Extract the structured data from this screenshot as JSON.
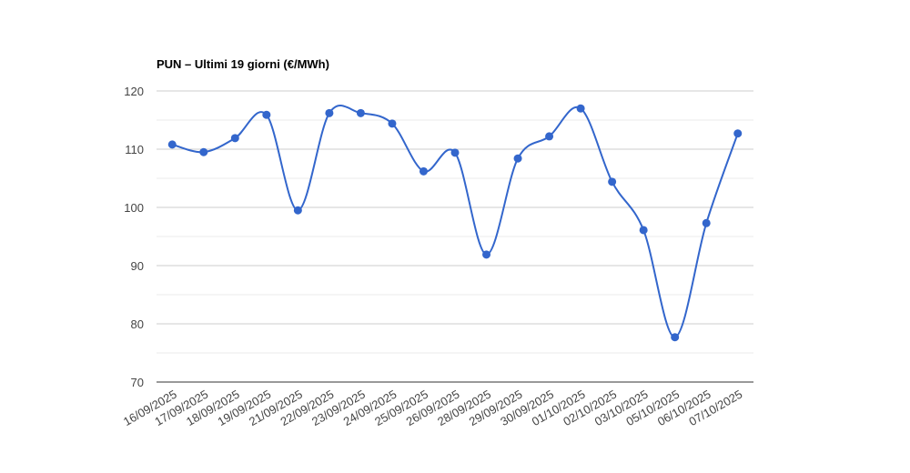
{
  "chart_data": {
    "type": "line",
    "title": "PUN – Ultimi 19 giorni (€/MWh)",
    "categories": [
      "16/09/2025",
      "17/09/2025",
      "18/09/2025",
      "19/09/2025",
      "21/09/2025",
      "22/09/2025",
      "23/09/2025",
      "24/09/2025",
      "25/09/2025",
      "26/09/2025",
      "28/09/2025",
      "29/09/2025",
      "30/09/2025",
      "01/10/2025",
      "02/10/2025",
      "03/10/2025",
      "05/10/2025",
      "06/10/2025",
      "07/10/2025"
    ],
    "values": [
      110.8,
      109.5,
      111.9,
      115.9,
      99.5,
      116.2,
      116.2,
      114.4,
      106.2,
      109.4,
      91.9,
      108.4,
      112.2,
      117.0,
      104.4,
      96.1,
      77.7,
      97.3,
      112.7
    ],
    "color": "#3366cc",
    "ylim": [
      70,
      120
    ],
    "yticks": [
      70,
      80,
      90,
      100,
      110,
      120
    ],
    "minor_yticks": [
      75,
      85,
      95,
      105,
      115
    ],
    "grid": true,
    "smooth": true
  }
}
